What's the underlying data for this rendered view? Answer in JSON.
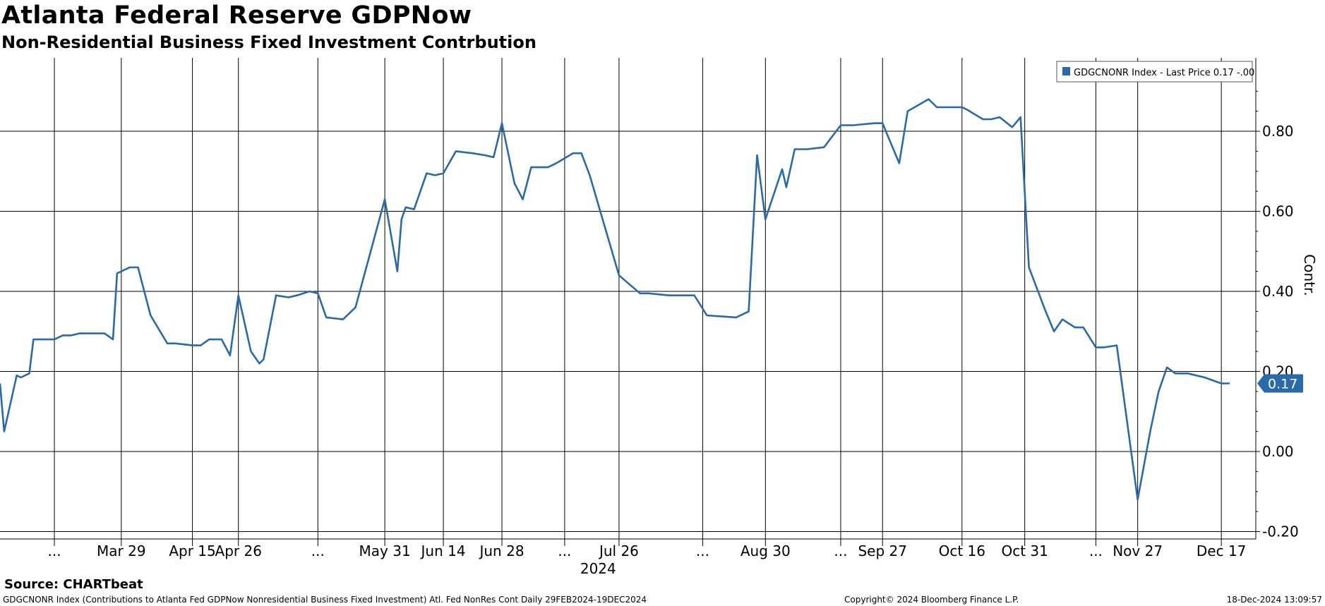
{
  "title": "Atlanta Federal Reserve GDPNow",
  "subtitle": "Non-Residential Business Fixed Investment Contrbution",
  "source": "Source: CHARTbeat",
  "footer": {
    "left": "GDGCNONR Index (Contributions to Atlanta Fed GDPNow Nonresidential Business Fixed Investment) Atl. Fed NonRes Cont  Daily 29FEB2024-19DEC2024",
    "middle": "Copyright© 2024 Bloomberg Finance L.P.",
    "right": "18-Dec-2024 13:09:57"
  },
  "colors": {
    "series": "#2a6aa8",
    "grid": "#000000",
    "background": "#ffffff"
  },
  "chart_data": {
    "type": "line",
    "title": "Atlanta Federal Reserve GDPNow",
    "subtitle": "Non-Residential Business Fixed Investment Contrbution",
    "ylabel": "Contr.",
    "ylim": [
      -0.2,
      0.9
    ],
    "yticks": [
      0.8,
      0.6,
      0.4,
      0.2,
      0.0,
      -0.2
    ],
    "ytick_labels": [
      "0.80",
      "0.60",
      "0.40",
      "0.20",
      "0.00",
      "-0.20"
    ],
    "grid": true,
    "legend_position": "top-right",
    "legend_label": "GDGCNONR Index - Last Price 0.17   -.00",
    "last_value_label": "0.17",
    "x_range": [
      "2024-02-29",
      "2024-12-19"
    ],
    "year_label": "2024",
    "xticks": [
      {
        "date": "2024-03-13",
        "label": "..."
      },
      {
        "date": "2024-03-29",
        "label": "Mar 29"
      },
      {
        "date": "2024-04-15",
        "label": "Apr 15"
      },
      {
        "date": "2024-04-26",
        "label": "Apr 26"
      },
      {
        "date": "2024-05-15",
        "label": "..."
      },
      {
        "date": "2024-05-31",
        "label": "May 31"
      },
      {
        "date": "2024-06-14",
        "label": "Jun 14"
      },
      {
        "date": "2024-06-28",
        "label": "Jun 28"
      },
      {
        "date": "2024-07-13",
        "label": "..."
      },
      {
        "date": "2024-07-26",
        "label": "Jul 26"
      },
      {
        "date": "2024-08-15",
        "label": "..."
      },
      {
        "date": "2024-08-30",
        "label": "Aug 30"
      },
      {
        "date": "2024-09-17",
        "label": "..."
      },
      {
        "date": "2024-09-27",
        "label": "Sep 27"
      },
      {
        "date": "2024-10-16",
        "label": "Oct 16"
      },
      {
        "date": "2024-10-31",
        "label": "Oct 31"
      },
      {
        "date": "2024-11-17",
        "label": "..."
      },
      {
        "date": "2024-11-27",
        "label": "Nov 27"
      },
      {
        "date": "2024-12-17",
        "label": "Dec 17"
      }
    ],
    "series": [
      {
        "name": "GDGCNONR Index",
        "points": [
          [
            "2024-02-29",
            0.17
          ],
          [
            "2024-03-01",
            0.05
          ],
          [
            "2024-03-04",
            0.19
          ],
          [
            "2024-03-05",
            0.185
          ],
          [
            "2024-03-07",
            0.195
          ],
          [
            "2024-03-08",
            0.28
          ],
          [
            "2024-03-13",
            0.28
          ],
          [
            "2024-03-15",
            0.29
          ],
          [
            "2024-03-17",
            0.29
          ],
          [
            "2024-03-19",
            0.295
          ],
          [
            "2024-03-21",
            0.295
          ],
          [
            "2024-03-25",
            0.295
          ],
          [
            "2024-03-27",
            0.28
          ],
          [
            "2024-03-28",
            0.445
          ],
          [
            "2024-03-31",
            0.46
          ],
          [
            "2024-04-02",
            0.46
          ],
          [
            "2024-04-05",
            0.34
          ],
          [
            "2024-04-09",
            0.27
          ],
          [
            "2024-04-11",
            0.27
          ],
          [
            "2024-04-15",
            0.265
          ],
          [
            "2024-04-17",
            0.265
          ],
          [
            "2024-04-19",
            0.28
          ],
          [
            "2024-04-22",
            0.28
          ],
          [
            "2024-04-24",
            0.24
          ],
          [
            "2024-04-26",
            0.39
          ],
          [
            "2024-04-29",
            0.25
          ],
          [
            "2024-05-01",
            0.22
          ],
          [
            "2024-05-02",
            0.23
          ],
          [
            "2024-05-05",
            0.39
          ],
          [
            "2024-05-08",
            0.385
          ],
          [
            "2024-05-10",
            0.39
          ],
          [
            "2024-05-13",
            0.4
          ],
          [
            "2024-05-15",
            0.395
          ],
          [
            "2024-05-17",
            0.335
          ],
          [
            "2024-05-21",
            0.33
          ],
          [
            "2024-05-24",
            0.36
          ],
          [
            "2024-05-31",
            0.63
          ],
          [
            "2024-06-03",
            0.45
          ],
          [
            "2024-06-04",
            0.58
          ],
          [
            "2024-06-05",
            0.61
          ],
          [
            "2024-06-07",
            0.605
          ],
          [
            "2024-06-10",
            0.695
          ],
          [
            "2024-06-12",
            0.69
          ],
          [
            "2024-06-14",
            0.695
          ],
          [
            "2024-06-17",
            0.75
          ],
          [
            "2024-06-21",
            0.745
          ],
          [
            "2024-06-24",
            0.74
          ],
          [
            "2024-06-26",
            0.735
          ],
          [
            "2024-06-28",
            0.82
          ],
          [
            "2024-07-01",
            0.67
          ],
          [
            "2024-07-03",
            0.63
          ],
          [
            "2024-07-05",
            0.71
          ],
          [
            "2024-07-09",
            0.71
          ],
          [
            "2024-07-11",
            0.72
          ],
          [
            "2024-07-15",
            0.745
          ],
          [
            "2024-07-17",
            0.745
          ],
          [
            "2024-07-19",
            0.69
          ],
          [
            "2024-07-26",
            0.44
          ],
          [
            "2024-07-31",
            0.395
          ],
          [
            "2024-08-02",
            0.395
          ],
          [
            "2024-08-07",
            0.39
          ],
          [
            "2024-08-13",
            0.39
          ],
          [
            "2024-08-16",
            0.34
          ],
          [
            "2024-08-23",
            0.335
          ],
          [
            "2024-08-26",
            0.35
          ],
          [
            "2024-08-28",
            0.74
          ],
          [
            "2024-08-30",
            0.58
          ],
          [
            "2024-09-03",
            0.705
          ],
          [
            "2024-09-04",
            0.66
          ],
          [
            "2024-09-06",
            0.755
          ],
          [
            "2024-09-09",
            0.755
          ],
          [
            "2024-09-13",
            0.76
          ],
          [
            "2024-09-17",
            0.815
          ],
          [
            "2024-09-20",
            0.815
          ],
          [
            "2024-09-25",
            0.82
          ],
          [
            "2024-09-27",
            0.82
          ],
          [
            "2024-10-01",
            0.72
          ],
          [
            "2024-10-03",
            0.85
          ],
          [
            "2024-10-08",
            0.88
          ],
          [
            "2024-10-10",
            0.86
          ],
          [
            "2024-10-16",
            0.86
          ],
          [
            "2024-10-17",
            0.855
          ],
          [
            "2024-10-21",
            0.83
          ],
          [
            "2024-10-23",
            0.83
          ],
          [
            "2024-10-25",
            0.835
          ],
          [
            "2024-10-28",
            0.81
          ],
          [
            "2024-10-30",
            0.835
          ],
          [
            "2024-11-01",
            0.46
          ],
          [
            "2024-11-05",
            0.35
          ],
          [
            "2024-11-07",
            0.3
          ],
          [
            "2024-11-09",
            0.33
          ],
          [
            "2024-11-12",
            0.31
          ],
          [
            "2024-11-14",
            0.31
          ],
          [
            "2024-11-17",
            0.26
          ],
          [
            "2024-11-19",
            0.26
          ],
          [
            "2024-11-22",
            0.265
          ],
          [
            "2024-11-27",
            -0.12
          ],
          [
            "2024-11-30",
            0.05
          ],
          [
            "2024-12-02",
            0.15
          ],
          [
            "2024-12-04",
            0.21
          ],
          [
            "2024-12-06",
            0.195
          ],
          [
            "2024-12-09",
            0.195
          ],
          [
            "2024-12-11",
            0.19
          ],
          [
            "2024-12-13",
            0.185
          ],
          [
            "2024-12-17",
            0.17
          ],
          [
            "2024-12-19",
            0.17
          ]
        ]
      }
    ]
  }
}
